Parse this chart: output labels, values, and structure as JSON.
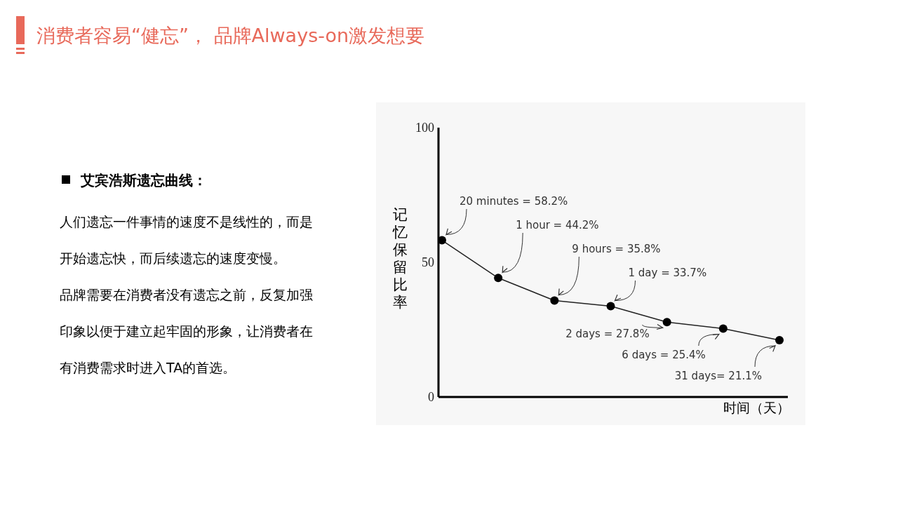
{
  "chart_data": {
    "type": "line",
    "title": "消费者容易“健忘”， 品牌Always-on激发想要",
    "xlabel": "时间（天）",
    "ylabel": "记忆保留比率",
    "annotations": [
      "艾宾浩斯遗忘曲线：",
      "人们遗忘一件事情的速度不是线性的，而是开始遗忘快，而后续遗忘的速度变慢。",
      "品牌需要在消费者没有遗忘之前，反复加强印象以便于建立起牢固的形象，让消费者在有消费需求时进入TA的首选。"
    ],
    "categories": [
      null,
      null,
      null,
      null,
      null,
      null,
      null
    ],
    "series": [
      {
        "color": "#222222",
        "values": [
          58.2,
          44.2,
          35.8,
          33.7,
          27.8,
          25.4,
          21.1
        ],
        "value_labels": [
          "20 minutes = 58.2%",
          "1 hour = 44.2%",
          "9 hours = 35.8%",
          "1 day = 33.7%",
          "2 days = 27.8%",
          "6 days = 25.4%",
          "31 days= 21.1%"
        ]
      }
    ],
    "ylim": [
      0,
      100
    ],
    "yticks": [
      0,
      50,
      100
    ],
    "tick_labels": "y",
    "marker": "circle",
    "grid": false
  }
}
